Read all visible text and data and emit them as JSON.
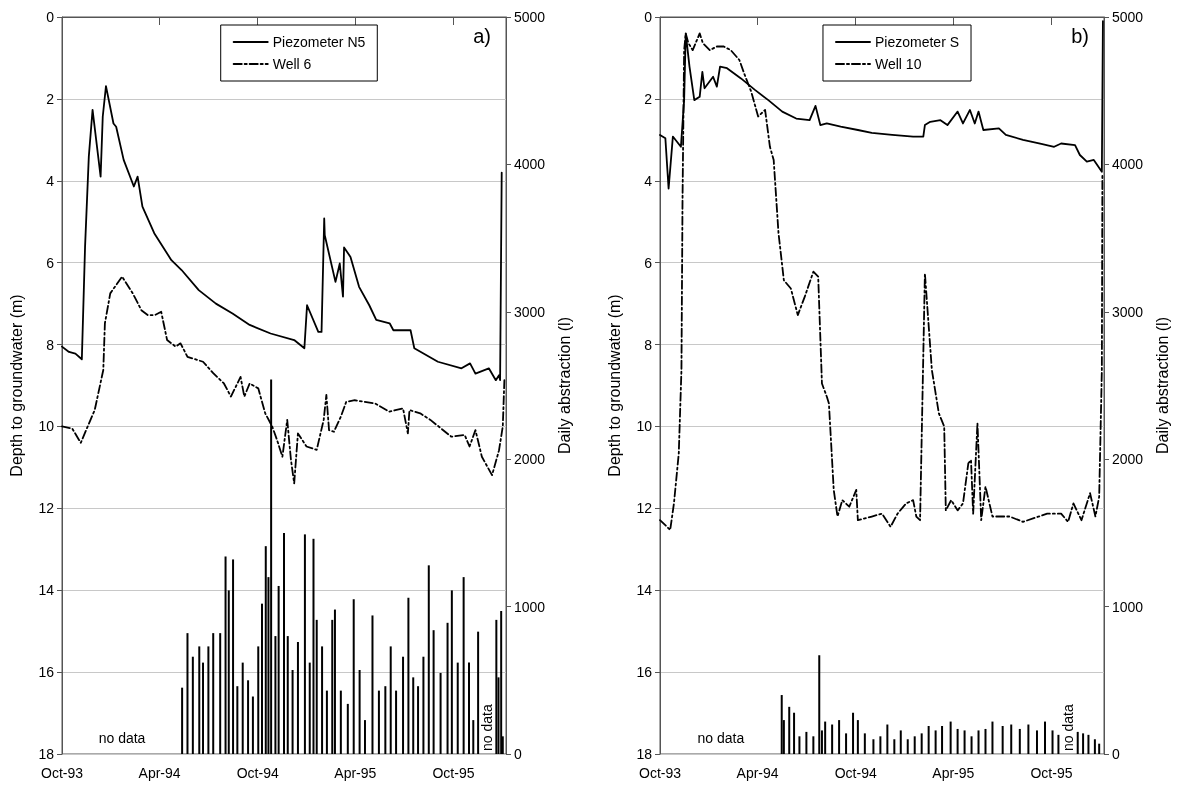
{
  "chart_data": [
    {
      "type": "line",
      "title": "a)",
      "ylabel": "Depth to groundwater (m)",
      "y2label": "Daily abstraction (l)",
      "annotations": [
        "no data",
        "no data"
      ],
      "xlim": [
        "1993-10-01",
        "1996-01-07"
      ],
      "xticks": [
        {
          "value": "1993-10-01",
          "label": "Oct-93"
        },
        {
          "value": "1994-04-01",
          "label": "Apr-94"
        },
        {
          "value": "1994-10-01",
          "label": "Oct-94"
        },
        {
          "value": "1995-04-01",
          "label": "Apr-95"
        },
        {
          "value": "1995-10-01",
          "label": "Oct-95"
        }
      ],
      "ylim": [
        18,
        0
      ],
      "yticks": [
        0,
        2,
        4,
        6,
        8,
        10,
        12,
        14,
        16,
        18
      ],
      "y2lim": [
        0,
        5000
      ],
      "y2ticks": [
        0,
        1000,
        2000,
        3000,
        4000,
        5000
      ],
      "grid": "y",
      "legend": "top",
      "marker": "none",
      "series": [
        {
          "type": "bar",
          "axis": "y2",
          "color": "#000000",
          "x": [
            "1994-05-13",
            "1994-05-23",
            "1994-06-02",
            "1994-06-14",
            "1994-06-21",
            "1994-07-01",
            "1994-07-10",
            "1994-07-23",
            "1994-08-02",
            "1994-08-08",
            "1994-08-16",
            "1994-08-24",
            "1994-09-03",
            "1994-09-13",
            "1994-09-22",
            "1994-10-02",
            "1994-10-09",
            "1994-10-16",
            "1994-10-21",
            "1994-10-26",
            "1994-11-03",
            "1994-11-09",
            "1994-11-19",
            "1994-11-26",
            "1994-12-05",
            "1994-12-15",
            "1994-12-28",
            "1995-01-06",
            "1995-01-13",
            "1995-01-19",
            "1995-01-29",
            "1995-02-07",
            "1995-02-17",
            "1995-02-22",
            "1995-03-05",
            "1995-03-18",
            "1995-03-29",
            "1995-04-09",
            "1995-04-19",
            "1995-05-03",
            "1995-05-15",
            "1995-05-27",
            "1995-06-06",
            "1995-06-16",
            "1995-06-29",
            "1995-07-09",
            "1995-07-18",
            "1995-07-27",
            "1995-08-06",
            "1995-08-16",
            "1995-08-25",
            "1995-09-07",
            "1995-09-20",
            "1995-09-28",
            "1995-10-09",
            "1995-10-20",
            "1995-10-30",
            "1995-11-07",
            "1995-11-16",
            "1995-12-20",
            "1995-12-24",
            "1995-12-29",
            "1996-01-01"
          ],
          "values": [
            450,
            820,
            660,
            730,
            620,
            730,
            820,
            820,
            1340,
            1110,
            1320,
            460,
            620,
            500,
            390,
            730,
            1020,
            1410,
            1200,
            2540,
            800,
            1140,
            1500,
            800,
            570,
            760,
            1490,
            620,
            1460,
            910,
            730,
            430,
            910,
            980,
            430,
            340,
            1050,
            570,
            230,
            940,
            430,
            460,
            730,
            430,
            660,
            1060,
            520,
            460,
            660,
            1280,
            840,
            550,
            890,
            1110,
            620,
            1200,
            620,
            230,
            830,
            910,
            520,
            970,
            120
          ]
        },
        {
          "name": "Piezometer N5",
          "color": "#000000",
          "line_style": "solid",
          "x": [
            "1993-10-01",
            "1993-10-14",
            "1993-10-26",
            "1993-11-07",
            "1993-11-13",
            "1993-11-20",
            "1993-11-27",
            "1993-12-12",
            "1993-12-16",
            "1993-12-22",
            "1994-01-05",
            "1994-01-10",
            "1994-01-24",
            "1994-02-12",
            "1994-02-19",
            "1994-02-28",
            "1994-03-22",
            "1994-04-23",
            "1994-05-12",
            "1994-06-13",
            "1994-07-15",
            "1994-08-15",
            "1994-09-16",
            "1994-10-25",
            "1994-12-08",
            "1994-12-27",
            "1995-01-01",
            "1995-01-22",
            "1995-01-28",
            "1995-02-02",
            "1995-02-03",
            "1995-02-23",
            "1995-03-03",
            "1995-03-09",
            "1995-03-11",
            "1995-03-23",
            "1995-04-08",
            "1995-04-27",
            "1995-05-10",
            "1995-06-04",
            "1995-06-11",
            "1995-07-13",
            "1995-07-20",
            "1995-09-02",
            "1995-10-16",
            "1995-11-01",
            "1995-11-11",
            "1995-12-06",
            "1995-12-19",
            "1995-12-25",
            "1995-12-27",
            "1995-12-30"
          ],
          "values": [
            8.05,
            8.18,
            8.22,
            8.36,
            5.61,
            3.41,
            2.27,
            3.9,
            2.43,
            1.69,
            2.6,
            2.68,
            3.49,
            4.14,
            3.9,
            4.63,
            5.28,
            5.94,
            6.18,
            6.67,
            7.0,
            7.24,
            7.52,
            7.73,
            7.89,
            8.09,
            7.04,
            7.69,
            7.69,
            4.92,
            5.33,
            6.47,
            6.02,
            6.83,
            5.63,
            5.86,
            6.59,
            7.04,
            7.4,
            7.48,
            7.65,
            7.65,
            8.09,
            8.42,
            8.58,
            8.46,
            8.71,
            8.58,
            8.87,
            8.75,
            8.87,
            3.8
          ]
        },
        {
          "name": "Well 6",
          "color": "#000000",
          "line_style": "dashed",
          "x": [
            "1993-10-01",
            "1993-10-20",
            "1993-11-05",
            "1993-11-15",
            "1993-12-01",
            "1993-12-17",
            "1993-12-20",
            "1993-12-30",
            "1994-01-21",
            "1994-02-10",
            "1994-02-26",
            "1994-03-10",
            "1994-03-23",
            "1994-04-04",
            "1994-04-15",
            "1994-05-01",
            "1994-05-10",
            "1994-05-23",
            "1994-06-21",
            "1994-07-10",
            "1994-07-30",
            "1994-08-12",
            "1994-08-30",
            "1994-09-06",
            "1994-09-16",
            "1994-10-02",
            "1994-10-15",
            "1994-10-28",
            "1994-11-06",
            "1994-11-16",
            "1994-11-25",
            "1994-12-02",
            "1994-12-08",
            "1994-12-15",
            "1994-12-31",
            "1995-01-19",
            "1995-02-01",
            "1995-02-06",
            "1995-02-11",
            "1995-02-20",
            "1995-03-05",
            "1995-03-15",
            "1995-03-31",
            "1995-05-08",
            "1995-06-03",
            "1995-06-29",
            "1995-07-08",
            "1995-07-11",
            "1995-07-31",
            "1995-08-19",
            "1995-09-27",
            "1995-10-22",
            "1995-10-31",
            "1995-11-11",
            "1995-11-23",
            "1995-12-12",
            "1995-12-25",
            "1996-01-01",
            "1996-01-04"
          ],
          "values": [
            10.0,
            10.05,
            10.4,
            10.09,
            9.6,
            8.62,
            7.48,
            6.75,
            6.34,
            6.75,
            7.16,
            7.28,
            7.28,
            7.2,
            7.89,
            8.05,
            7.97,
            8.3,
            8.42,
            8.7,
            8.95,
            9.27,
            8.79,
            9.27,
            8.95,
            9.07,
            9.68,
            10.0,
            10.33,
            10.74,
            9.84,
            10.82,
            11.39,
            10.17,
            10.49,
            10.57,
            9.84,
            9.23,
            10.09,
            10.13,
            9.76,
            9.4,
            9.36,
            9.44,
            9.64,
            9.56,
            10.17,
            9.6,
            9.68,
            9.84,
            10.25,
            10.21,
            10.49,
            10.09,
            10.74,
            11.19,
            10.58,
            10.0,
            8.86
          ]
        }
      ]
    },
    {
      "type": "line",
      "title": "b)",
      "ylabel": "Depth to groundwater (m)",
      "y2label": "Daily abstraction (l)",
      "annotations": [
        "no data",
        "no data"
      ],
      "xlim": [
        "1993-10-01",
        "1996-01-07"
      ],
      "xticks": [
        {
          "value": "1993-10-01",
          "label": "Oct-93"
        },
        {
          "value": "1994-04-01",
          "label": "Apr-94"
        },
        {
          "value": "1994-10-01",
          "label": "Oct-94"
        },
        {
          "value": "1995-04-01",
          "label": "Apr-95"
        },
        {
          "value": "1995-10-01",
          "label": "Oct-95"
        }
      ],
      "ylim": [
        18,
        0
      ],
      "yticks": [
        0,
        2,
        4,
        6,
        8,
        10,
        12,
        14,
        16,
        18
      ],
      "y2lim": [
        0,
        5000
      ],
      "y2ticks": [
        0,
        1000,
        2000,
        3000,
        4000,
        5000
      ],
      "grid": "y",
      "legend": "top",
      "marker": "none",
      "series": [
        {
          "type": "bar",
          "axis": "y2",
          "color": "#000000",
          "x": [
            "1994-05-16",
            "1994-05-20",
            "1994-05-30",
            "1994-06-08",
            "1994-06-18",
            "1994-07-01",
            "1994-07-14",
            "1994-07-25",
            "1994-07-30",
            "1994-08-05",
            "1994-08-18",
            "1994-08-31",
            "1994-09-13",
            "1994-09-26",
            "1994-10-05",
            "1994-10-18",
            "1994-11-03",
            "1994-11-16",
            "1994-11-29",
            "1994-12-12",
            "1994-12-24",
            "1995-01-06",
            "1995-01-19",
            "1995-02-01",
            "1995-02-14",
            "1995-02-27",
            "1995-03-11",
            "1995-03-27",
            "1995-04-09",
            "1995-04-22",
            "1995-05-05",
            "1995-05-18",
            "1995-05-31",
            "1995-06-13",
            "1995-07-02",
            "1995-07-18",
            "1995-08-03",
            "1995-08-19",
            "1995-09-04",
            "1995-09-19",
            "1995-10-03",
            "1995-10-14",
            "1995-11-19",
            "1995-11-29",
            "1995-12-09",
            "1995-12-21",
            "1995-12-29"
          ],
          "values": [
            400,
            230,
            320,
            280,
            120,
            150,
            120,
            670,
            160,
            220,
            200,
            230,
            140,
            280,
            230,
            140,
            100,
            120,
            200,
            100,
            160,
            100,
            120,
            140,
            190,
            160,
            190,
            220,
            170,
            160,
            120,
            160,
            170,
            220,
            190,
            200,
            170,
            200,
            160,
            220,
            160,
            130,
            150,
            140,
            130,
            100,
            70
          ]
        },
        {
          "name": "Piezometer S",
          "color": "#000000",
          "line_style": "solid",
          "x": [
            "1993-10-01",
            "1993-10-11",
            "1993-10-17",
            "1993-10-25",
            "1993-11-09",
            "1993-11-15",
            "1993-11-18",
            "1993-11-25",
            "1993-12-04",
            "1993-12-14",
            "1993-12-19",
            "1993-12-23",
            "1994-01-08",
            "1994-01-15",
            "1994-01-21",
            "1994-02-03",
            "1994-03-01",
            "1994-03-27",
            "1994-04-21",
            "1994-05-17",
            "1994-06-12",
            "1994-07-07",
            "1994-07-18",
            "1994-07-27",
            "1994-08-08",
            "1994-09-03",
            "1994-10-05",
            "1994-10-31",
            "1994-12-08",
            "1995-01-16",
            "1995-02-04",
            "1995-02-07",
            "1995-02-17",
            "1995-03-08",
            "1995-03-21",
            "1995-04-09",
            "1995-04-19",
            "1995-05-02",
            "1995-05-11",
            "1995-05-18",
            "1995-05-27",
            "1995-06-25",
            "1995-07-08",
            "1995-08-09",
            "1995-09-10",
            "1995-10-06",
            "1995-10-19",
            "1995-11-14",
            "1995-11-23",
            "1995-12-06",
            "1995-12-19",
            "1996-01-03",
            "1996-01-05"
          ],
          "values": [
            2.88,
            2.96,
            4.19,
            2.92,
            3.17,
            2.03,
            0.4,
            1.21,
            2.03,
            1.95,
            1.34,
            1.74,
            1.46,
            1.7,
            1.21,
            1.25,
            1.5,
            1.78,
            2.03,
            2.31,
            2.48,
            2.52,
            2.17,
            2.64,
            2.6,
            2.68,
            2.76,
            2.83,
            2.88,
            2.92,
            2.92,
            2.64,
            2.56,
            2.52,
            2.64,
            2.31,
            2.6,
            2.27,
            2.6,
            2.31,
            2.76,
            2.72,
            2.88,
            3.0,
            3.09,
            3.17,
            3.09,
            3.13,
            3.37,
            3.53,
            3.49,
            3.78,
            0.1
          ]
        },
        {
          "name": "Well 10",
          "color": "#000000",
          "line_style": "dashed",
          "x": [
            "1993-10-01",
            "1993-10-14",
            "1993-10-20",
            "1993-10-27",
            "1993-11-05",
            "1993-11-10",
            "1993-11-12",
            "1993-11-15",
            "1993-11-18",
            "1993-11-23",
            "1993-12-01",
            "1993-12-14",
            "1993-12-20",
            "1994-01-02",
            "1994-01-15",
            "1994-01-28",
            "1994-02-10",
            "1994-02-26",
            "1994-03-07",
            "1994-03-20",
            "1994-04-02",
            "1994-04-15",
            "1994-04-24",
            "1994-05-01",
            "1994-05-10",
            "1994-05-20",
            "1994-06-02",
            "1994-06-15",
            "1994-06-28",
            "1994-07-14",
            "1994-07-23",
            "1994-07-30",
            "1994-08-08",
            "1994-08-12",
            "1994-08-21",
            "1994-08-28",
            "1994-09-06",
            "1994-09-19",
            "1994-10-02",
            "1994-10-05",
            "1994-10-31",
            "1994-11-19",
            "1994-12-05",
            "1994-12-18",
            "1995-01-03",
            "1995-01-16",
            "1995-01-22",
            "1995-01-29",
            "1995-02-07",
            "1995-02-20",
            "1995-03-05",
            "1995-03-15",
            "1995-03-18",
            "1995-03-28",
            "1995-04-09",
            "1995-04-19",
            "1995-04-29",
            "1995-05-04",
            "1995-05-08",
            "1995-05-16",
            "1995-05-23",
            "1995-05-31",
            "1995-06-13",
            "1995-07-15",
            "1995-08-09",
            "1995-09-23",
            "1995-10-19",
            "1995-11-01",
            "1995-11-11",
            "1995-11-26",
            "1995-12-12",
            "1995-12-22",
            "1995-12-29",
            "1996-01-03",
            "1996-01-04"
          ],
          "values": [
            12.29,
            12.45,
            12.53,
            11.88,
            10.66,
            8.62,
            4.47,
            0.81,
            0.4,
            0.64,
            0.81,
            0.4,
            0.64,
            0.81,
            0.72,
            0.72,
            0.81,
            1.05,
            1.38,
            1.82,
            2.43,
            2.27,
            3.17,
            3.49,
            5.28,
            6.43,
            6.63,
            7.28,
            6.83,
            6.22,
            6.34,
            8.95,
            9.27,
            9.44,
            11.55,
            12.2,
            11.8,
            11.96,
            11.55,
            12.29,
            12.2,
            12.13,
            12.45,
            12.13,
            11.88,
            11.8,
            12.2,
            12.29,
            6.26,
            8.62,
            9.68,
            10.0,
            12.05,
            11.8,
            12.05,
            11.88,
            10.9,
            10.82,
            12.13,
            9.92,
            12.29,
            11.47,
            12.2,
            12.2,
            12.33,
            12.13,
            12.13,
            12.33,
            11.88,
            12.29,
            11.63,
            12.2,
            11.72,
            8.62,
            3.82
          ]
        }
      ]
    }
  ]
}
